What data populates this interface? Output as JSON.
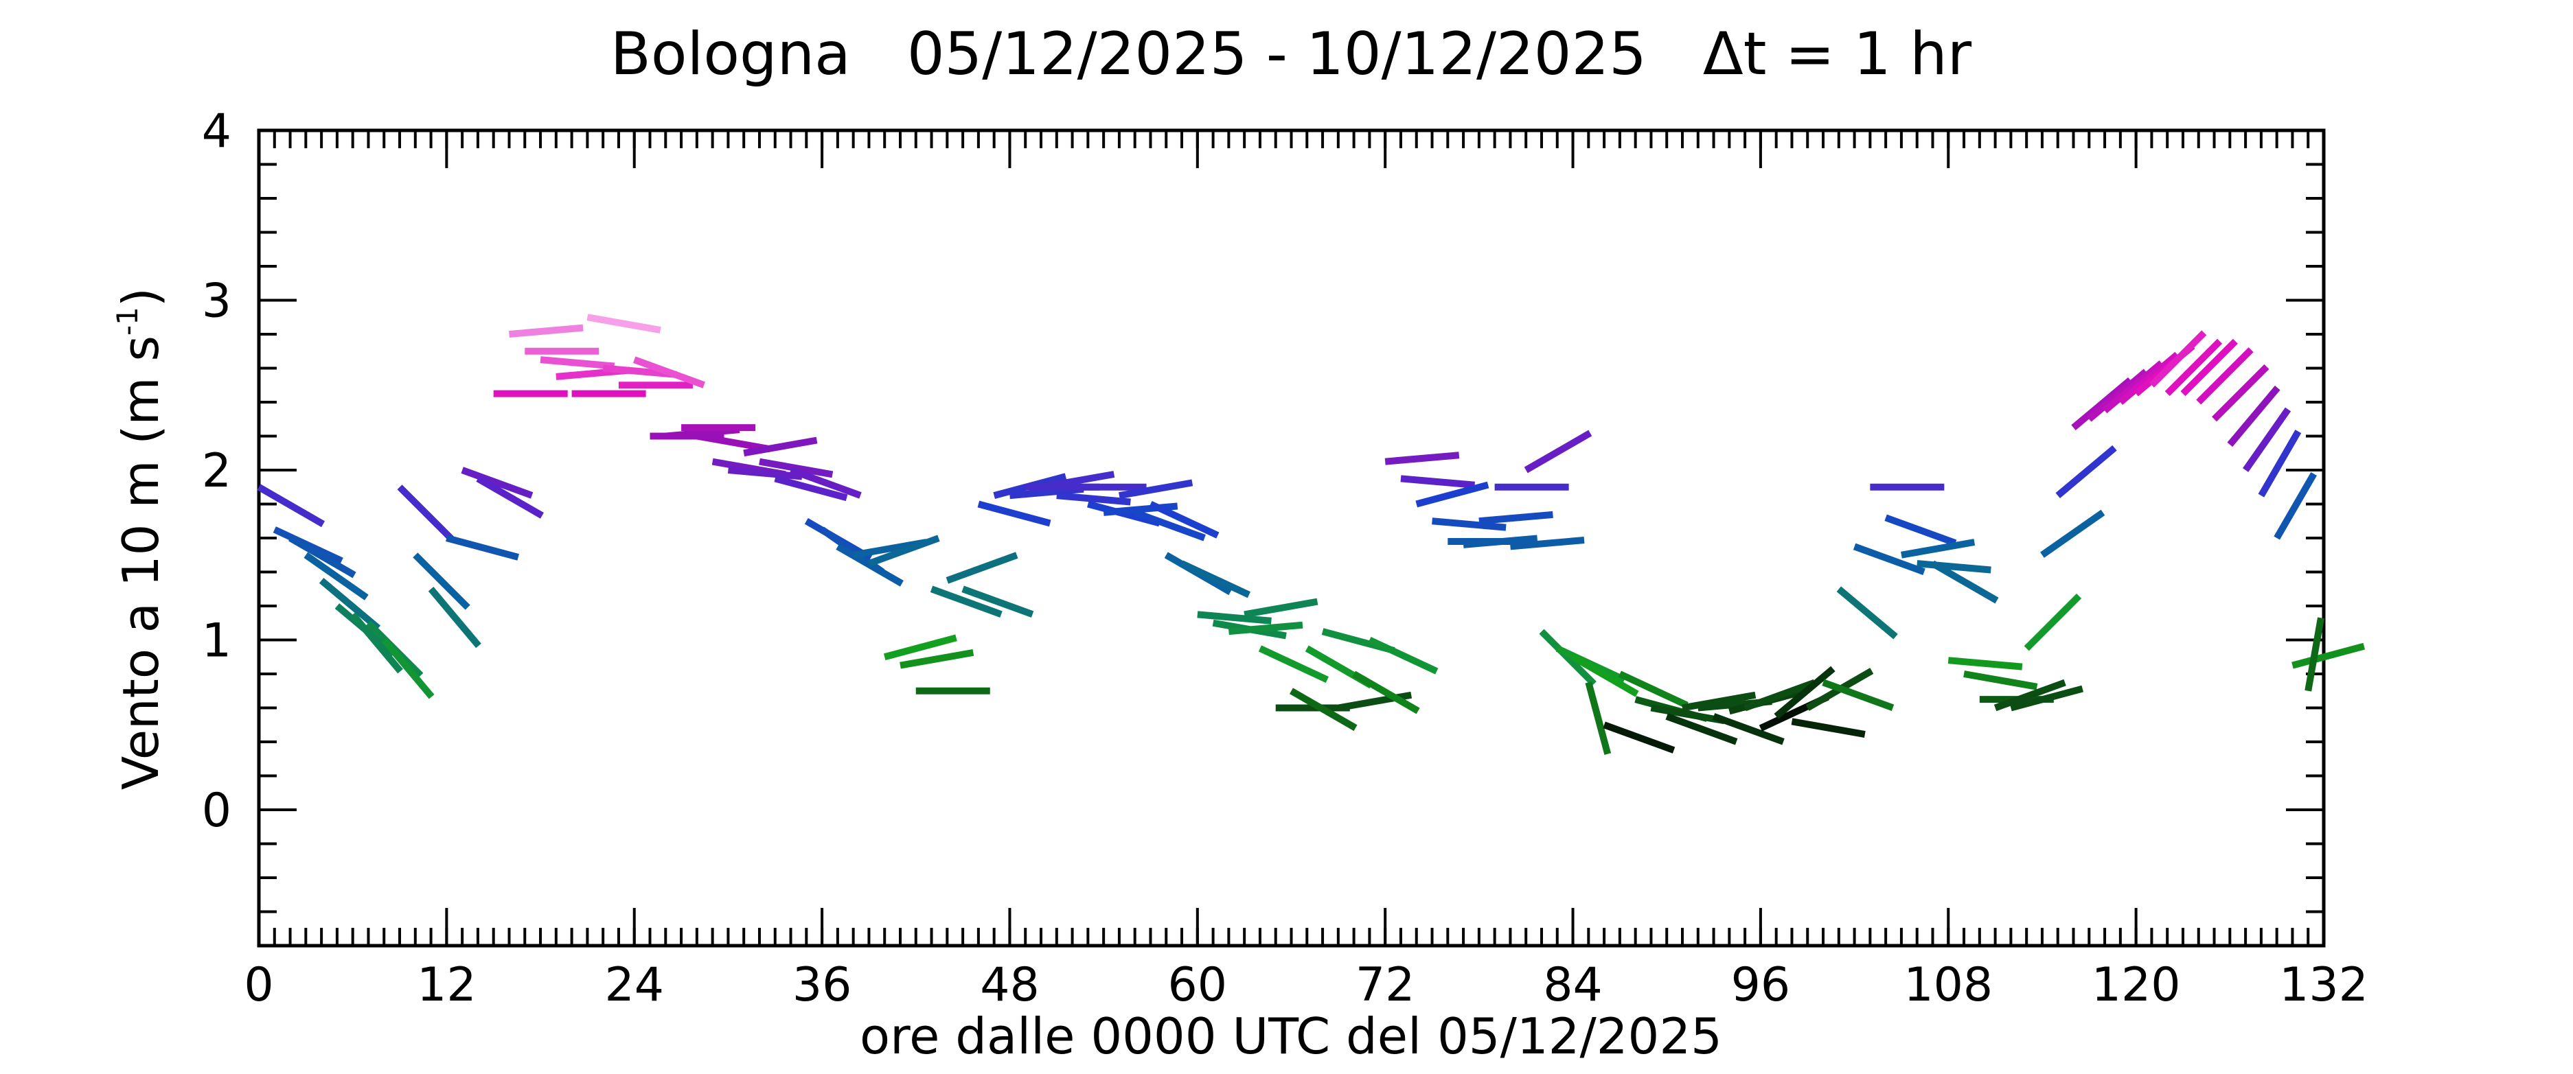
{
  "chart_data": {
    "type": "wind-stick",
    "title": "Bologna   05/12/2025 - 10/12/2025   Δt = 1 hr",
    "x_label": "ore dalle 0000 UTC del 05/12/2025",
    "y_label": {
      "text": "Vento a 10 m (m s",
      "sup": "-1",
      "end": ")"
    },
    "xlim": [
      0,
      132
    ],
    "ylim": [
      -0.8,
      4
    ],
    "xticks": [
      0,
      12,
      24,
      36,
      48,
      60,
      72,
      84,
      96,
      108,
      120,
      132
    ],
    "yticks": [
      0,
      1,
      2,
      3,
      4
    ],
    "xminor_step": 1,
    "yminor_step": 0.2,
    "color_stops": [
      {
        "value": 0.45,
        "color": "#000000"
      },
      {
        "value": 0.6,
        "color": "#0b4d12"
      },
      {
        "value": 0.9,
        "color": "#13a01f"
      },
      {
        "value": 1.25,
        "color": "#0e7a6a"
      },
      {
        "value": 1.5,
        "color": "#0a62a0"
      },
      {
        "value": 1.8,
        "color": "#1c3fd0"
      },
      {
        "value": 1.95,
        "color": "#5a22c8"
      },
      {
        "value": 2.2,
        "color": "#9a10b8"
      },
      {
        "value": 2.45,
        "color": "#e010c0"
      },
      {
        "value": 2.9,
        "color": "#f5a0e8"
      }
    ],
    "x": [
      0,
      1,
      2,
      3,
      4,
      5,
      6,
      7,
      8,
      9,
      10,
      11,
      12,
      13,
      14,
      15,
      16,
      17,
      18,
      19,
      20,
      21,
      22,
      23,
      24,
      25,
      26,
      27,
      28,
      29,
      30,
      31,
      32,
      33,
      34,
      35,
      36,
      37,
      38,
      39,
      40,
      41,
      42,
      43,
      44,
      45,
      46,
      47,
      48,
      49,
      50,
      51,
      52,
      53,
      54,
      55,
      56,
      57,
      58,
      59,
      60,
      61,
      62,
      63,
      64,
      65,
      66,
      67,
      68,
      69,
      70,
      71,
      72,
      73,
      74,
      75,
      76,
      77,
      78,
      79,
      80,
      81,
      82,
      83,
      84,
      85,
      86,
      87,
      88,
      89,
      90,
      91,
      92,
      93,
      94,
      95,
      96,
      97,
      98,
      99,
      100,
      101,
      102,
      103,
      104,
      105,
      106,
      107,
      108,
      109,
      110,
      111,
      112,
      113,
      114,
      115,
      116,
      117,
      118,
      119,
      120,
      121,
      122,
      123,
      124,
      125,
      126,
      127,
      128,
      129,
      130,
      131
    ],
    "values": [
      1.9,
      1.65,
      1.6,
      1.5,
      1.35,
      1.2,
      1.15,
      1.1,
      1.0,
      1.9,
      1.5,
      1.3,
      1.6,
      2.0,
      1.95,
      2.45,
      2.8,
      2.7,
      2.65,
      2.55,
      2.45,
      2.9,
      2.6,
      2.5,
      2.65,
      2.2,
      2.2,
      2.25,
      2.2,
      2.05,
      2.0,
      2.1,
      2.05,
      1.95,
      2.0,
      1.7,
      1.65,
      1.55,
      1.5,
      1.45,
      0.9,
      0.85,
      0.7,
      1.3,
      1.35,
      1.3,
      1.8,
      1.85,
      1.85,
      1.9,
      1.9,
      1.85,
      1.9,
      1.8,
      1.75,
      1.85,
      1.75,
      1.8,
      1.5,
      1.45,
      1.15,
      1.1,
      1.05,
      1.15,
      0.95,
      0.6,
      0.7,
      0.95,
      1.05,
      0.6,
      0.8,
      1.0,
      2.05,
      1.95,
      1.8,
      1.7,
      1.58,
      1.56,
      1.7,
      1.9,
      1.55,
      2.0,
      1.05,
      0.95,
      0.9,
      0.75,
      0.5,
      0.8,
      0.65,
      0.6,
      0.55,
      0.6,
      0.6,
      0.55,
      0.58,
      0.6,
      0.48,
      0.55,
      0.52,
      0.6,
      0.75,
      1.3,
      1.55,
      1.9,
      1.72,
      1.5,
      1.45,
      1.45,
      0.88,
      0.8,
      0.65,
      0.6,
      0.6,
      0.95,
      1.5,
      1.85,
      2.25,
      2.3,
      2.35,
      2.4,
      2.45,
      2.5,
      2.45,
      2.45,
      2.4,
      2.3,
      2.15,
      2.0,
      1.85,
      1.6,
      0.85,
      0.7
    ],
    "directions": [
      -30,
      -25,
      -30,
      -35,
      -40,
      -40,
      -50,
      -45,
      -50,
      -45,
      -45,
      -50,
      -15,
      -20,
      -30,
      0,
      5,
      0,
      -5,
      5,
      0,
      -10,
      -5,
      0,
      -20,
      0,
      5,
      0,
      -10,
      -10,
      -5,
      10,
      -10,
      -15,
      -20,
      -30,
      -35,
      -30,
      10,
      20,
      15,
      10,
      0,
      -20,
      20,
      -20,
      -15,
      15,
      5,
      0,
      10,
      -5,
      0,
      -15,
      5,
      10,
      -20,
      -25,
      -30,
      -25,
      -5,
      -10,
      5,
      10,
      -25,
      0,
      -30,
      -30,
      -15,
      10,
      -30,
      -25,
      5,
      -5,
      15,
      -5,
      0,
      5,
      5,
      0,
      5,
      30,
      -45,
      -25,
      -30,
      -75,
      -20,
      -25,
      -15,
      -10,
      -20,
      10,
      5,
      -20,
      15,
      20,
      25,
      40,
      -10,
      30,
      -20,
      -40,
      -20,
      0,
      -20,
      10,
      -5,
      -30,
      -5,
      -10,
      0,
      20,
      15,
      45,
      35,
      40,
      40,
      40,
      40,
      40,
      40,
      45,
      45,
      45,
      45,
      45,
      50,
      55,
      60,
      60,
      15,
      80
    ]
  }
}
